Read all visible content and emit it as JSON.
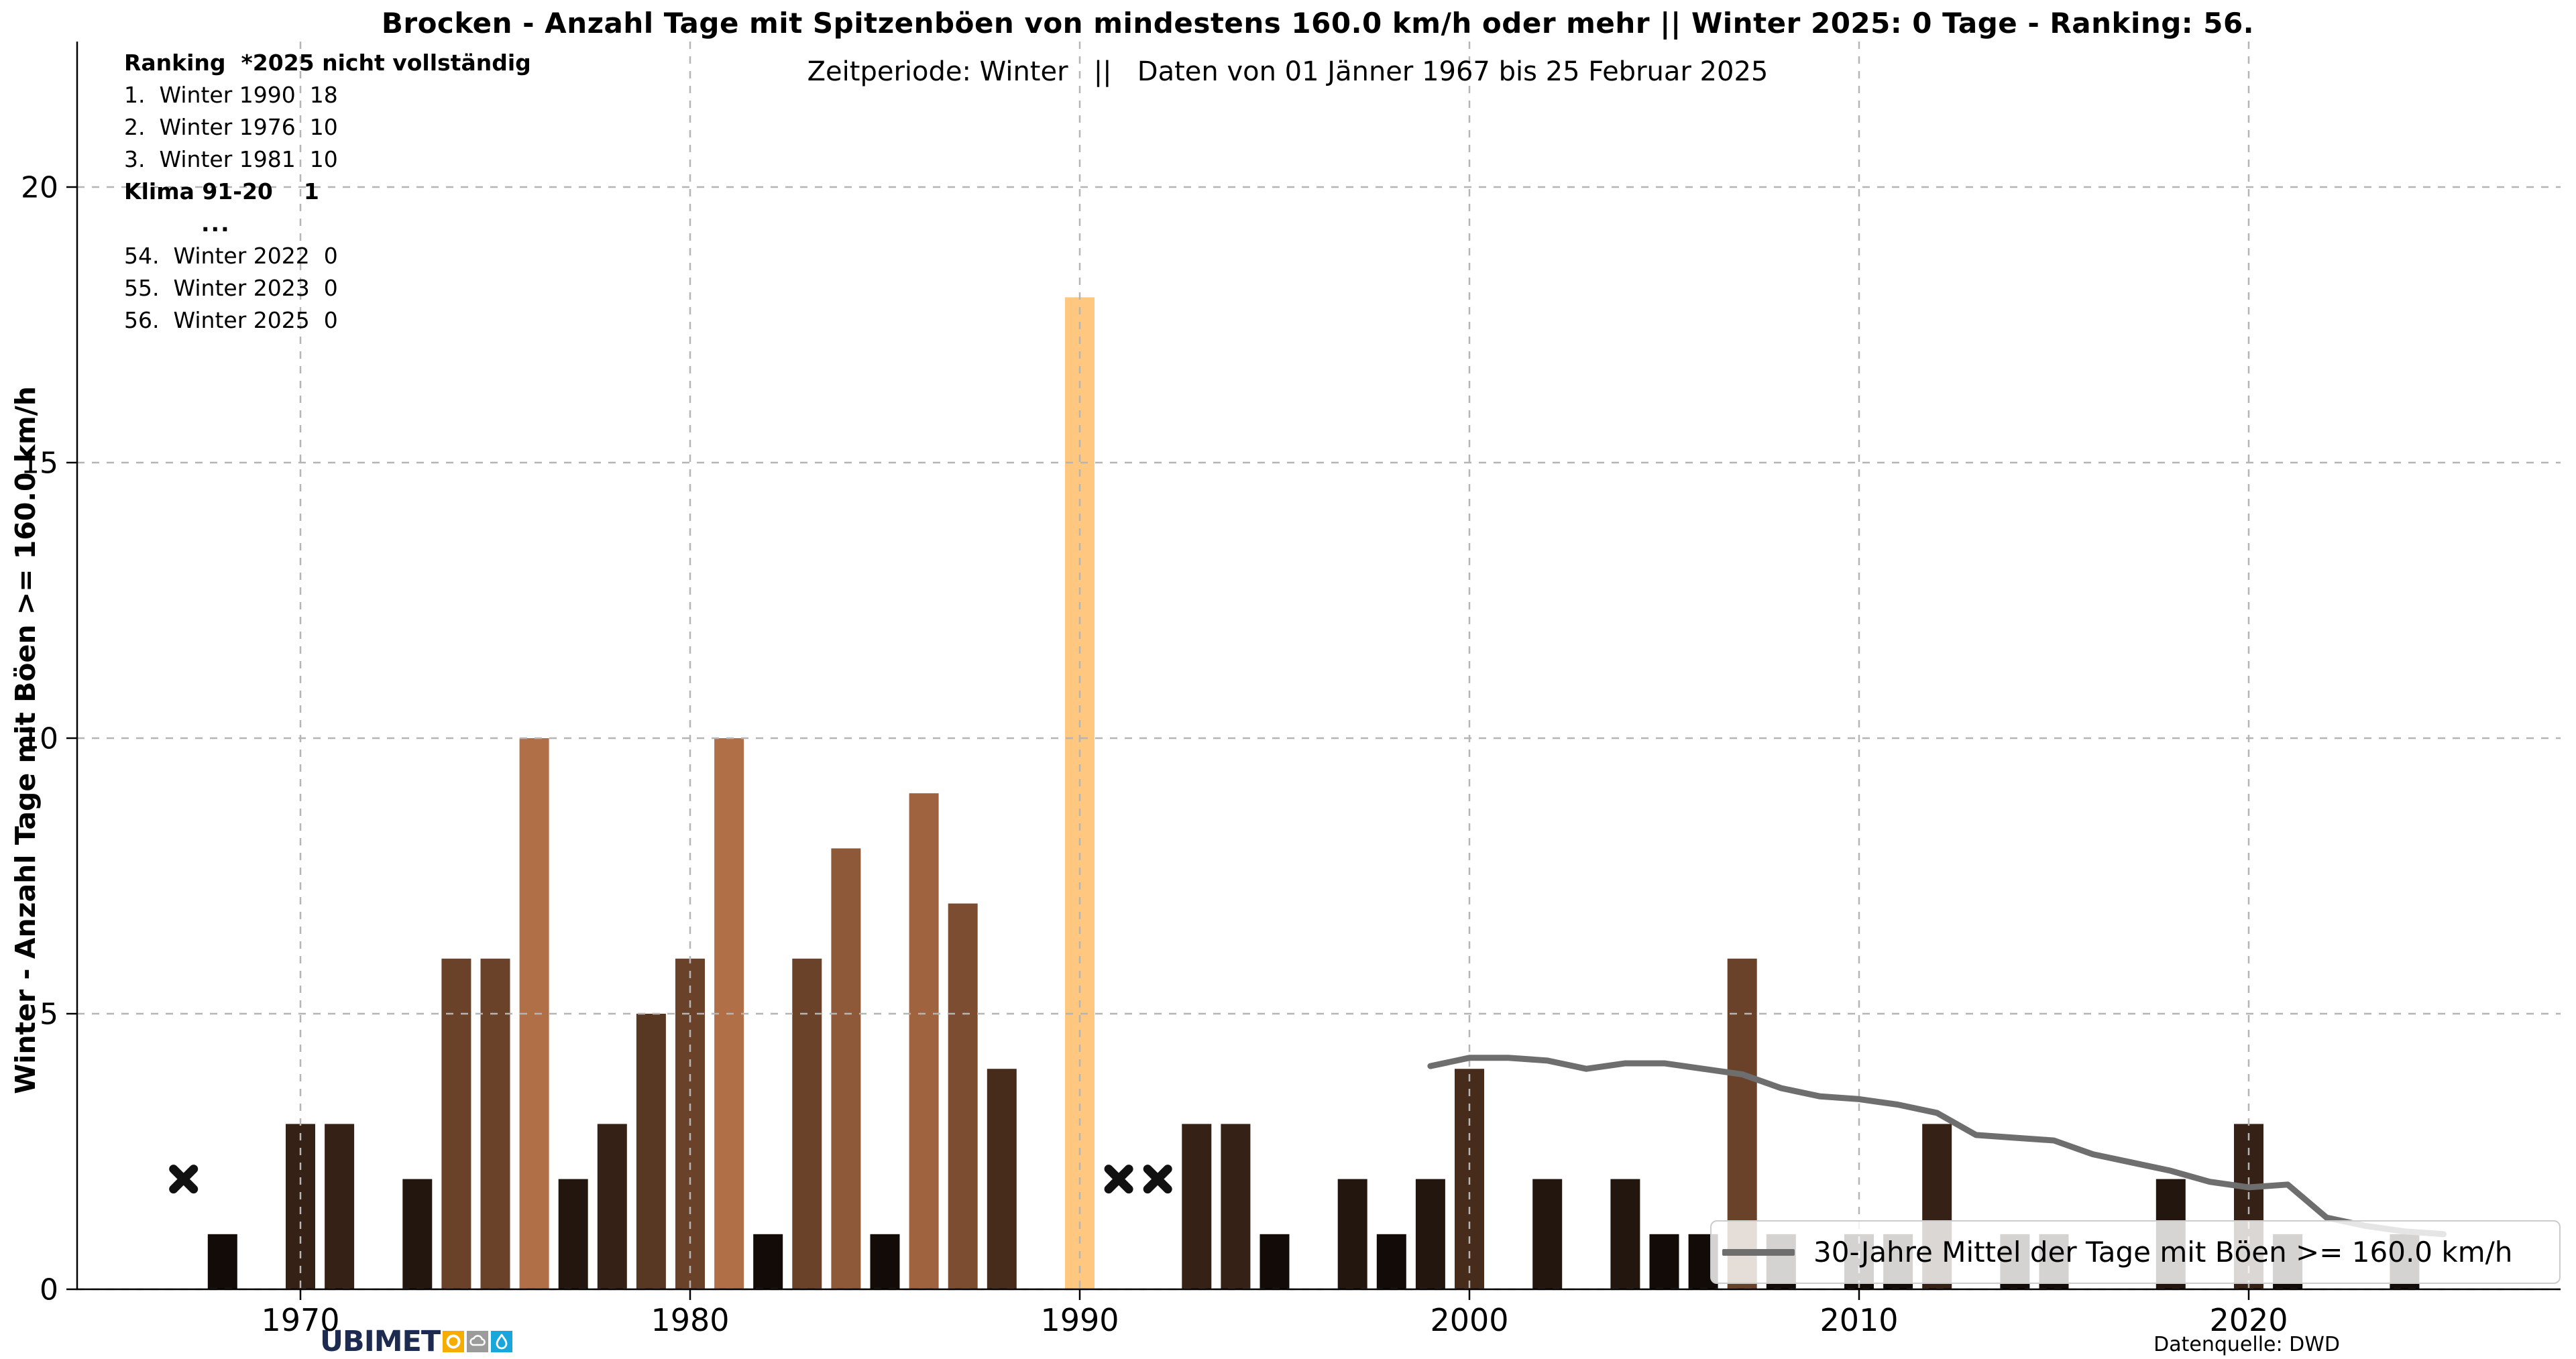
{
  "header": {
    "title": "Brocken - Anzahl Tage mit Spitzenböen von mindestens 160.0 km/h oder mehr || Winter 2025: 0 Tage - Ranking: 56.",
    "subtitle": "Zeitperiode: Winter   ||   Daten von 01 Jänner 1967 bis 25 Februar 2025"
  },
  "ranking_panel": {
    "rows": [
      {
        "text": "Ranking  *2025 nicht vollständig",
        "bold": true,
        "ellipsis": false
      },
      {
        "text": "1.  Winter 1990  18",
        "bold": false,
        "ellipsis": false
      },
      {
        "text": "2.  Winter 1976  10",
        "bold": false,
        "ellipsis": false
      },
      {
        "text": "3.  Winter 1981  10",
        "bold": false,
        "ellipsis": false
      },
      {
        "text": "Klima 91-20    1",
        "bold": true,
        "ellipsis": false
      },
      {
        "text": "...",
        "bold": true,
        "ellipsis": true
      },
      {
        "text": "54.  Winter 2022  0",
        "bold": false,
        "ellipsis": false
      },
      {
        "text": "55.  Winter 2023  0",
        "bold": false,
        "ellipsis": false
      },
      {
        "text": "56.  Winter 2025  0",
        "bold": false,
        "ellipsis": false
      }
    ]
  },
  "chart_data": {
    "type": "bar",
    "title": "Brocken - Anzahl Tage mit Spitzenböen von mindestens 160.0 km/h oder mehr || Winter 2025: 0 Tage - Ranking: 56.",
    "xlabel": "",
    "ylabel": "Winter - Anzahl Tage mit Böen >= 160.0 km/h",
    "yticks": [
      0,
      5,
      10,
      15,
      20
    ],
    "xticks": [
      1970,
      1980,
      1990,
      2000,
      2010,
      2020
    ],
    "xlim": [
      1964.3,
      2027.9
    ],
    "ylim": [
      0,
      22.5
    ],
    "grid": true,
    "bars": [
      [
        1968,
        1
      ],
      [
        1970,
        3
      ],
      [
        1971,
        3
      ],
      [
        1973,
        2
      ],
      [
        1974,
        6
      ],
      [
        1975,
        6
      ],
      [
        1976,
        10
      ],
      [
        1977,
        2
      ],
      [
        1978,
        3
      ],
      [
        1979,
        5
      ],
      [
        1980,
        6
      ],
      [
        1981,
        10
      ],
      [
        1982,
        1
      ],
      [
        1983,
        6
      ],
      [
        1984,
        8
      ],
      [
        1985,
        1
      ],
      [
        1986,
        9
      ],
      [
        1987,
        7
      ],
      [
        1988,
        4
      ],
      [
        1990,
        18
      ],
      [
        1993,
        3
      ],
      [
        1994,
        3
      ],
      [
        1995,
        1
      ],
      [
        1997,
        2
      ],
      [
        1998,
        1
      ],
      [
        1999,
        2
      ],
      [
        2000,
        4
      ],
      [
        2002,
        2
      ],
      [
        2004,
        2
      ],
      [
        2005,
        1
      ],
      [
        2006,
        1
      ],
      [
        2007,
        6
      ],
      [
        2008,
        1
      ],
      [
        2010,
        1
      ],
      [
        2011,
        1
      ],
      [
        2012,
        3
      ],
      [
        2014,
        1
      ],
      [
        2015,
        1
      ],
      [
        2018,
        2
      ],
      [
        2020,
        3
      ],
      [
        2021,
        1
      ],
      [
        2024,
        1
      ]
    ],
    "zero_value_years": [
      1969,
      1972,
      1989,
      1996,
      2001,
      2003,
      2009,
      2013,
      2016,
      2017,
      2019,
      2022,
      2023,
      2025
    ],
    "missing_data_years": [
      1967,
      1991,
      1992
    ],
    "missing_marker_y": 2,
    "max_year": 1990,
    "max_value": 18,
    "mean_line": {
      "label": "30-Jahre Mittel der Tage mit Böen >= 160.0 km/h",
      "color": "#6e6e6e",
      "points": [
        [
          1999,
          4.05
        ],
        [
          2000,
          4.2
        ],
        [
          2001,
          4.2
        ],
        [
          2002,
          4.15
        ],
        [
          2003,
          4.0
        ],
        [
          2004,
          4.1
        ],
        [
          2005,
          4.1
        ],
        [
          2006,
          4.0
        ],
        [
          2007,
          3.9
        ],
        [
          2008,
          3.65
        ],
        [
          2009,
          3.5
        ],
        [
          2010,
          3.45
        ],
        [
          2011,
          3.35
        ],
        [
          2012,
          3.2
        ],
        [
          2013,
          2.8
        ],
        [
          2014,
          2.75
        ],
        [
          2015,
          2.7
        ],
        [
          2016,
          2.45
        ],
        [
          2017,
          2.3
        ],
        [
          2018,
          2.15
        ],
        [
          2019,
          1.95
        ],
        [
          2020,
          1.85
        ],
        [
          2021,
          1.9
        ],
        [
          2022,
          1.3
        ],
        [
          2023,
          1.15
        ],
        [
          2024,
          1.05
        ],
        [
          2025,
          1.0
        ]
      ]
    },
    "colors": {
      "bar_scale": "copper",
      "bar_min_color": "#120b07",
      "bar_max_color": "#ffc77f",
      "line": "#6e6e6e",
      "grid": "#b5b5b5",
      "axis": "#000000",
      "marker": "#111111"
    },
    "legend_position": "lower right"
  },
  "legend": {
    "label": "30-Jahre Mittel der Tage mit Böen >= 160.0 km/h"
  },
  "footer": {
    "logo": {
      "part1": "UBI",
      "part2": "MET",
      "navy": "#1d2b50",
      "icons": [
        "sun-icon",
        "cloud-icon",
        "droplet-icon"
      ],
      "icon_colors": [
        "#f5ad00",
        "#9b9b9b",
        "#19a7db"
      ]
    },
    "source": "Datenquelle: DWD"
  }
}
